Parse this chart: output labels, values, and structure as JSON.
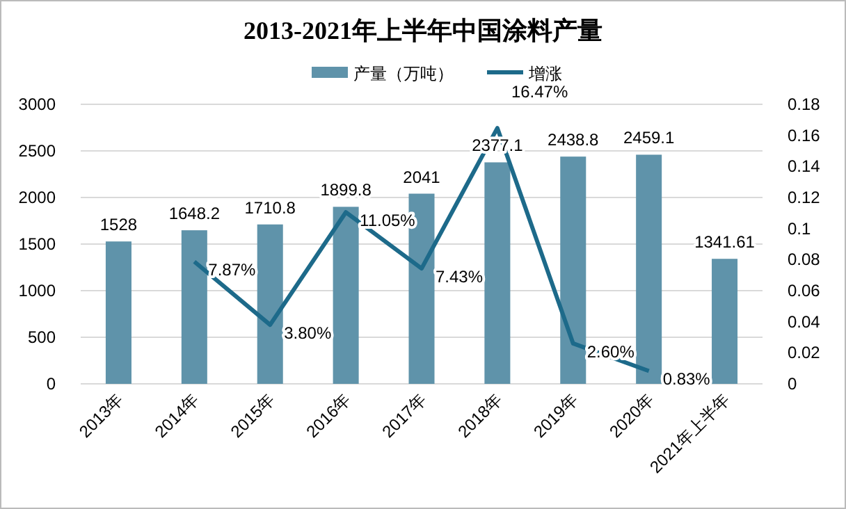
{
  "chart_data": {
    "type": "bar",
    "title": "2013-2021年上半年中国涂料产量",
    "categories": [
      "2013年",
      "2014年",
      "2015年",
      "2016年",
      "2017年",
      "2018年",
      "2019年",
      "2020年",
      "2021年上半年"
    ],
    "series": [
      {
        "name": "产量（万吨）",
        "color": "#5f93aa",
        "values": [
          1528,
          1648.2,
          1710.8,
          1899.8,
          2041,
          2377.1,
          2438.8,
          2459.1,
          1341.61
        ],
        "value_labels": [
          "1528",
          "1648.2",
          "1710.8",
          "1899.8",
          "2041",
          "2377.1",
          "2438.8",
          "2459.1",
          "1341.61"
        ]
      },
      {
        "name": "增涨",
        "type": "line",
        "axis": "y2",
        "color": "#1d6a8a",
        "values": [
          null,
          0.0787,
          0.038,
          0.1105,
          0.0743,
          0.1647,
          0.026,
          0.0083,
          null
        ],
        "value_labels": [
          null,
          "7.87%",
          "3.80%",
          "11.05%",
          "7.43%",
          "16.47%",
          "2.60%",
          "0.83%",
          null
        ]
      }
    ],
    "ylim": [
      0,
      3000
    ],
    "yticks": [
      0,
      500,
      1000,
      1500,
      2000,
      2500,
      3000
    ],
    "y2lim": [
      0,
      0.18
    ],
    "y2ticks": [
      {
        "value": 0,
        "label": "0"
      },
      {
        "value": 0.02,
        "label": "0.02"
      },
      {
        "value": 0.04,
        "label": "0.04"
      },
      {
        "value": 0.06,
        "label": "0.06"
      },
      {
        "value": 0.08,
        "label": "0.08"
      },
      {
        "value": 0.1,
        "label": "0.1"
      },
      {
        "value": 0.12,
        "label": "0.12"
      },
      {
        "value": 0.14,
        "label": "0.14"
      },
      {
        "value": 0.16,
        "label": "0.16"
      },
      {
        "value": 0.18,
        "label": "0.18"
      }
    ],
    "grid": "y",
    "legend": "top",
    "marker": "none",
    "line_style": "solid"
  }
}
